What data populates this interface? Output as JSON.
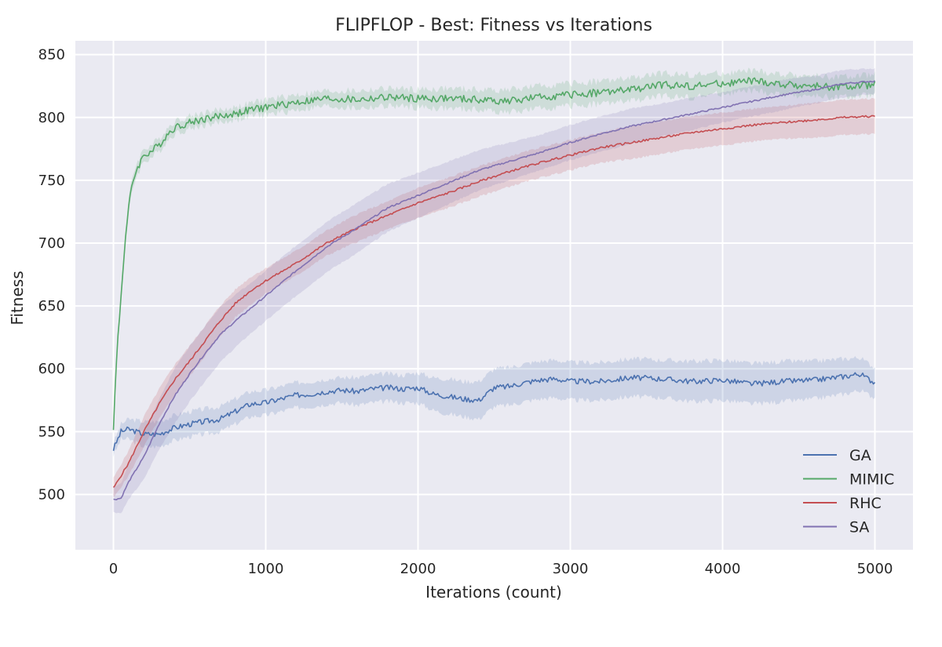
{
  "chart_data": {
    "type": "line",
    "title": "FLIPFLOP - Best: Fitness vs Iterations",
    "xlabel": "Iterations (count)",
    "ylabel": "Fitness",
    "xlim": [
      -250,
      5250
    ],
    "ylim": [
      456,
      861
    ],
    "xticks": [
      0,
      1000,
      2000,
      3000,
      4000,
      5000
    ],
    "yticks": [
      500,
      550,
      600,
      650,
      700,
      750,
      800,
      850
    ],
    "grid": true,
    "background": "#eaeaf2",
    "legend_position": "lower-right",
    "series": [
      {
        "name": "GA",
        "color": "#4c72b0",
        "x": [
          0,
          50,
          100,
          200,
          300,
          400,
          500,
          600,
          700,
          800,
          900,
          1000,
          1100,
          1200,
          1300,
          1400,
          1500,
          1600,
          1700,
          1800,
          1900,
          2000,
          2100,
          2200,
          2300,
          2400,
          2500,
          2600,
          2700,
          2800,
          2900,
          3000,
          3200,
          3400,
          3600,
          3800,
          4000,
          4200,
          4400,
          4600,
          4800,
          4900,
          5000
        ],
        "y": [
          536,
          550,
          552,
          548,
          548,
          553,
          556,
          558,
          560,
          566,
          572,
          573,
          576,
          579,
          580,
          582,
          583,
          582,
          584,
          585,
          584,
          585,
          580,
          578,
          576,
          575,
          585,
          586,
          589,
          591,
          592,
          590,
          590,
          593,
          592,
          590,
          591,
          588,
          590,
          591,
          594,
          596,
          589
        ],
        "band": [
          5,
          6,
          8,
          10,
          10,
          10,
          10,
          10,
          10,
          10,
          10,
          10,
          10,
          10,
          10,
          10,
          10,
          11,
          11,
          11,
          11,
          12,
          13,
          14,
          14,
          15,
          15,
          15,
          15,
          15,
          15,
          15,
          15,
          15,
          15,
          16,
          16,
          16,
          16,
          15,
          14,
          13,
          12
        ]
      },
      {
        "name": "MIMIC",
        "color": "#55a868",
        "x": [
          0,
          25,
          50,
          75,
          100,
          125,
          150,
          175,
          200,
          250,
          300,
          350,
          400,
          500,
          600,
          700,
          800,
          900,
          1000,
          1200,
          1400,
          1600,
          1800,
          2000,
          2200,
          2400,
          2600,
          2800,
          3000,
          3200,
          3400,
          3600,
          3800,
          4000,
          4200,
          4400,
          4600,
          4800,
          5000
        ],
        "y": [
          554,
          618,
          658,
          700,
          728,
          748,
          758,
          764,
          770,
          773,
          778,
          786,
          792,
          796,
          799,
          801,
          803,
          806,
          808,
          812,
          815,
          814,
          816,
          815,
          815,
          814,
          813,
          816,
          818,
          820,
          822,
          826,
          825,
          827,
          829,
          826,
          825,
          824,
          826
        ],
        "band": [
          3,
          5,
          6,
          6,
          6,
          5,
          5,
          5,
          5,
          5,
          5,
          5,
          5,
          5,
          5,
          5,
          5,
          5,
          6,
          6,
          6,
          7,
          7,
          7,
          8,
          8,
          9,
          9,
          9,
          9,
          9,
          9,
          9,
          8,
          8,
          8,
          8,
          8,
          8
        ]
      },
      {
        "name": "RHC",
        "color": "#c44e52",
        "x": [
          0,
          100,
          200,
          300,
          400,
          500,
          600,
          700,
          800,
          900,
          1000,
          1200,
          1400,
          1600,
          1800,
          2000,
          2200,
          2400,
          2600,
          2800,
          3000,
          3200,
          3400,
          3600,
          3800,
          4000,
          4200,
          4400,
          4600,
          4800,
          5000
        ],
        "y": [
          505,
          525,
          550,
          572,
          591,
          606,
          622,
          638,
          652,
          662,
          670,
          684,
          700,
          712,
          722,
          732,
          740,
          749,
          757,
          764,
          770,
          776,
          780,
          784,
          788,
          791,
          794,
          796,
          798,
          800,
          801
        ],
        "band": [
          8,
          10,
          12,
          12,
          12,
          12,
          12,
          12,
          11,
          11,
          10,
          10,
          10,
          11,
          11,
          12,
          12,
          12,
          12,
          12,
          12,
          12,
          13,
          13,
          13,
          13,
          13,
          13,
          14,
          14,
          14
        ]
      },
      {
        "name": "SA",
        "color": "#8172b2",
        "x": [
          0,
          50,
          100,
          200,
          300,
          400,
          500,
          600,
          700,
          800,
          900,
          1000,
          1200,
          1400,
          1600,
          1800,
          2000,
          2200,
          2400,
          2600,
          2800,
          3000,
          3200,
          3400,
          3600,
          3800,
          4000,
          4200,
          4400,
          4600,
          4800,
          5000
        ],
        "y": [
          496,
          497,
          510,
          530,
          556,
          578,
          596,
          612,
          627,
          638,
          648,
          658,
          678,
          697,
          712,
          728,
          738,
          748,
          758,
          765,
          772,
          780,
          787,
          793,
          798,
          803,
          808,
          813,
          818,
          822,
          827,
          829
        ],
        "band": [
          10,
          12,
          14,
          18,
          20,
          22,
          22,
          22,
          22,
          21,
          20,
          20,
          20,
          20,
          20,
          19,
          18,
          17,
          16,
          15,
          14,
          14,
          14,
          14,
          13,
          13,
          12,
          12,
          12,
          11,
          11,
          10
        ]
      }
    ]
  }
}
